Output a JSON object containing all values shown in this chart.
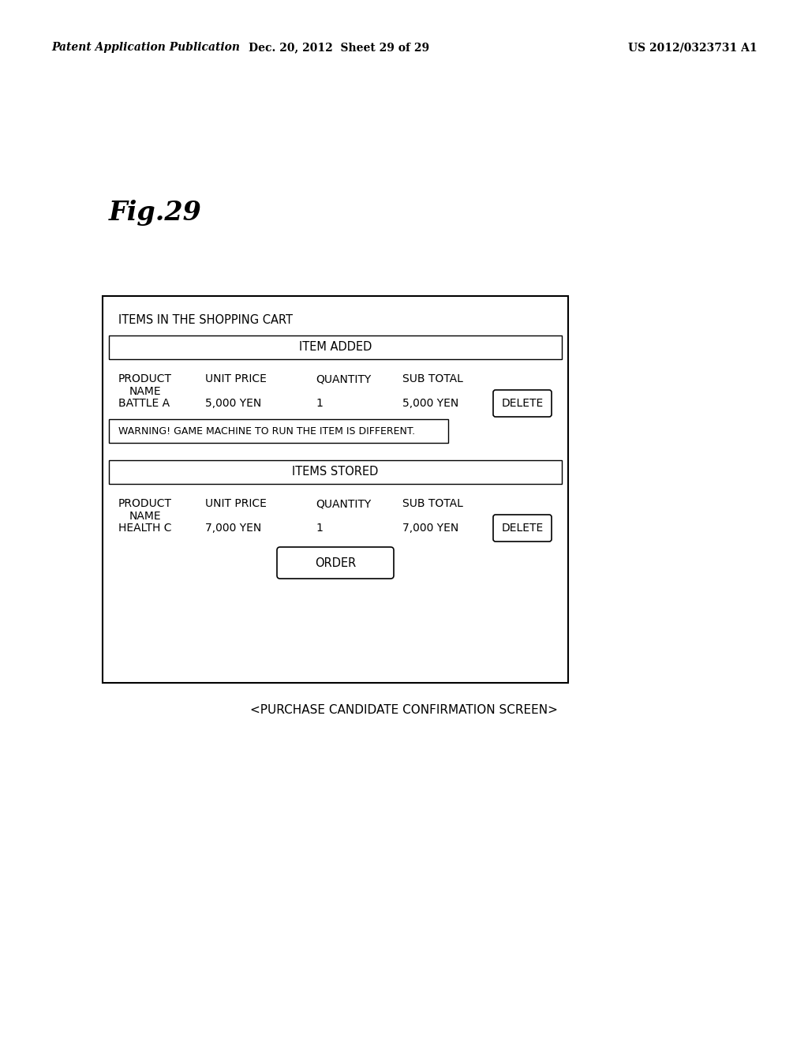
{
  "bg_color": "#ffffff",
  "header_left": "Patent Application Publication",
  "header_mid": "Dec. 20, 2012  Sheet 29 of 29",
  "header_right": "US 2012/0323731 A1",
  "fig_label": "Fig.29",
  "title_text": "ITEMS IN THE SHOPPING CART",
  "section1_header": "ITEM ADDED",
  "col_headers": [
    "PRODUCT\nNAME",
    "UNIT PRICE",
    "QUANTITY",
    "SUB TOTAL"
  ],
  "row1": [
    "BATTLE A",
    "5,000 YEN",
    "1",
    "5,000 YEN"
  ],
  "warning_text": "WARNING! GAME MACHINE TO RUN THE ITEM IS DIFFERENT.",
  "section2_header": "ITEMS STORED",
  "col_headers2": [
    "PRODUCT\nNAME",
    "UNIT PRICE",
    "QUANTITY",
    "SUB TOTAL"
  ],
  "row2": [
    "HEALTH C",
    "7,000 YEN",
    "1",
    "7,000 YEN"
  ],
  "order_button": "ORDER",
  "caption": "<PURCHASE CANDIDATE CONFIRMATION SCREEN>",
  "font_size_header": 10,
  "font_size_title": 10.5,
  "font_size_section": 10.5,
  "font_size_body": 10,
  "font_size_fig": 24,
  "font_size_caption": 11
}
